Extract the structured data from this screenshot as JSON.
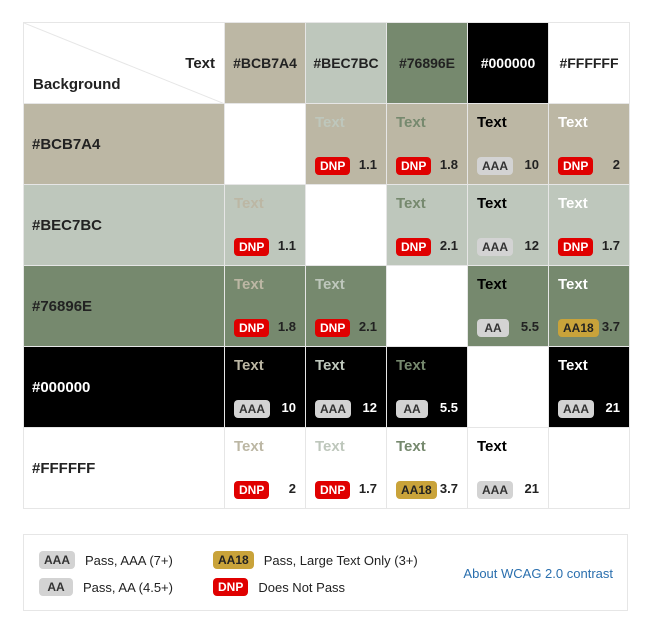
{
  "corner": {
    "text_label": "Text",
    "background_label": "Background"
  },
  "colors": [
    {
      "hex": "#BCB7A4",
      "label": "#BCB7A4",
      "text_color": "#222222"
    },
    {
      "hex": "#BEC7BC",
      "label": "#BEC7BC",
      "text_color": "#222222"
    },
    {
      "hex": "#76896E",
      "label": "#76896E",
      "text_color": "#222222"
    },
    {
      "hex": "#000000",
      "label": "#000000",
      "text_color": "#FFFFFF"
    },
    {
      "hex": "#FFFFFF",
      "label": "#FFFFFF",
      "text_color": "#222222"
    }
  ],
  "sample_text": "Text",
  "cells": [
    [
      null,
      {
        "rating": "DNP",
        "ratio": "1.1"
      },
      {
        "rating": "DNP",
        "ratio": "1.8"
      },
      {
        "rating": "AAA",
        "ratio": "10"
      },
      {
        "rating": "DNP",
        "ratio": "2"
      }
    ],
    [
      {
        "rating": "DNP",
        "ratio": "1.1"
      },
      null,
      {
        "rating": "DNP",
        "ratio": "2.1"
      },
      {
        "rating": "AAA",
        "ratio": "12"
      },
      {
        "rating": "DNP",
        "ratio": "1.7"
      }
    ],
    [
      {
        "rating": "DNP",
        "ratio": "1.8"
      },
      {
        "rating": "DNP",
        "ratio": "2.1"
      },
      null,
      {
        "rating": "AA",
        "ratio": "5.5"
      },
      {
        "rating": "AA18",
        "ratio": "3.7"
      }
    ],
    [
      {
        "rating": "AAA",
        "ratio": "10"
      },
      {
        "rating": "AAA",
        "ratio": "12"
      },
      {
        "rating": "AA",
        "ratio": "5.5"
      },
      null,
      {
        "rating": "AAA",
        "ratio": "21"
      }
    ],
    [
      {
        "rating": "DNP",
        "ratio": "2"
      },
      {
        "rating": "DNP",
        "ratio": "1.7"
      },
      {
        "rating": "AA18",
        "ratio": "3.7"
      },
      {
        "rating": "AAA",
        "ratio": "21"
      },
      null
    ]
  ],
  "legend": {
    "aaa": {
      "badge": "AAA",
      "label": "Pass, AAA (7+)"
    },
    "aa": {
      "badge": "AA",
      "label": "Pass, AA (4.5+)"
    },
    "aa18": {
      "badge": "AA18",
      "label": "Pass, Large Text Only (3+)"
    },
    "dnp": {
      "badge": "DNP",
      "label": "Does Not Pass"
    },
    "link": "About WCAG 2.0 contrast"
  }
}
